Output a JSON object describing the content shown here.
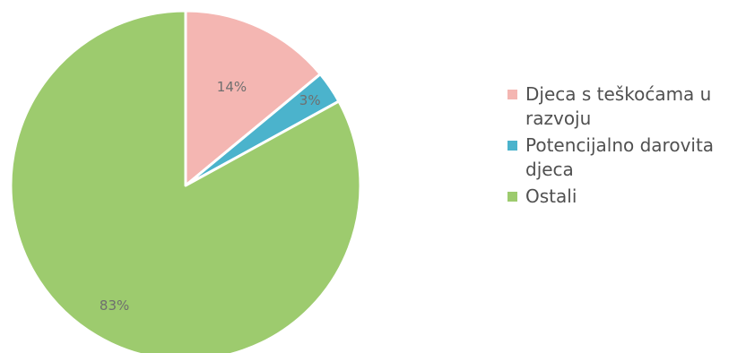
{
  "chart_data": {
    "type": "pie",
    "title": "",
    "legend_position": "right",
    "slices": [
      {
        "label": "Djeca s teškoćama u razvoju",
        "value": 14,
        "display": "14%",
        "color": "#f4b6b2"
      },
      {
        "label": "Potencijalno darovita djeca",
        "value": 3,
        "display": "3%",
        "color": "#4bb3cc"
      },
      {
        "label": "Ostali",
        "value": 83,
        "display": "83%",
        "color": "#9dcb6e"
      }
    ]
  }
}
